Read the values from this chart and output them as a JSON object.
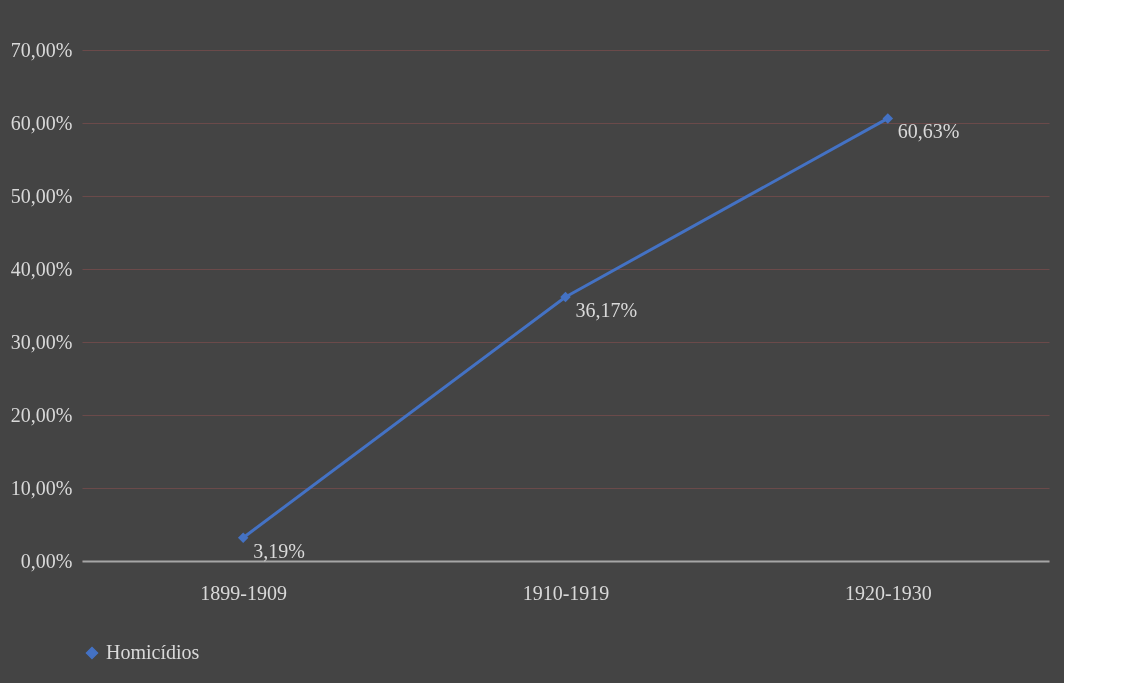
{
  "chart_data": {
    "type": "line",
    "categories": [
      "1899-1909",
      "1910-1919",
      "1920-1930"
    ],
    "series": [
      {
        "name": "Homicídios",
        "color": "#4472c4",
        "values": [
          3.19,
          36.17,
          60.63
        ],
        "value_labels": [
          "3,19%",
          "36,17%",
          "60,63%"
        ]
      }
    ],
    "ylim": [
      0,
      70
    ],
    "yticks": [
      {
        "value": 0,
        "label": "0,00%"
      },
      {
        "value": 10,
        "label": "10,00%"
      },
      {
        "value": 20,
        "label": "20,00%"
      },
      {
        "value": 30,
        "label": "30,00%"
      },
      {
        "value": 40,
        "label": "40,00%"
      },
      {
        "value": 50,
        "label": "50,00%"
      },
      {
        "value": 60,
        "label": "60,00%"
      },
      {
        "value": 70,
        "label": "70,00%"
      }
    ],
    "grid": "y",
    "legend": "bottom left",
    "marker": "diamond"
  }
}
